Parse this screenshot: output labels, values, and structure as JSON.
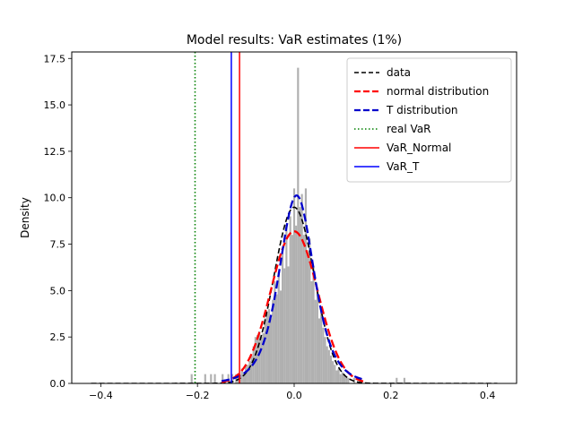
{
  "chart_data": {
    "type": "bar",
    "title": "Model results: VaR estimates (1%)",
    "xlabel": "",
    "ylabel": "Density",
    "xlim": [
      -0.46,
      0.46
    ],
    "ylim": [
      0,
      17.85
    ],
    "xticks": [
      -0.4,
      -0.2,
      0.0,
      0.2,
      0.4
    ],
    "xtick_labels": [
      "−0.4",
      "−0.2",
      "0.0",
      "0.2",
      "0.4"
    ],
    "yticks": [
      0.0,
      2.5,
      5.0,
      7.5,
      10.0,
      12.5,
      15.0,
      17.5
    ],
    "ytick_labels": [
      "0.0",
      "2.5",
      "5.0",
      "7.5",
      "10.0",
      "12.5",
      "15.0",
      "17.5"
    ],
    "grid": false,
    "legend_position": "top-right",
    "colors": {
      "histogram": "#b0b0b0",
      "data": "#000000",
      "normal": "#ff0000",
      "t": "#0000cc",
      "real_var": "#008000",
      "var_normal": "#ff0000",
      "var_t": "#0000ff"
    },
    "legend": [
      {
        "label": "data",
        "key": "data",
        "style": "dashed"
      },
      {
        "label": "normal distribution",
        "key": "normal",
        "style": "dashed-thick"
      },
      {
        "label": "T distribution",
        "key": "t",
        "style": "dashed-thick"
      },
      {
        "label": "real VaR",
        "key": "real_var",
        "style": "dotted"
      },
      {
        "label": "VaR_Normal",
        "key": "var_normal",
        "style": "solid"
      },
      {
        "label": "VaR_T",
        "key": "var_t",
        "style": "solid"
      }
    ],
    "histogram": {
      "bin_width": 0.004,
      "bins": [
        [
          -0.214,
          0.5
        ],
        [
          -0.186,
          0.5
        ],
        [
          -0.174,
          0.5
        ],
        [
          -0.166,
          0.5
        ],
        [
          -0.15,
          0.5
        ],
        [
          -0.138,
          0.5
        ],
        [
          -0.13,
          0.5
        ],
        [
          -0.122,
          0.5
        ],
        [
          -0.118,
          0.5
        ],
        [
          -0.114,
          0.5
        ],
        [
          -0.11,
          0.8
        ],
        [
          -0.106,
          0.5
        ],
        [
          -0.102,
          1.0
        ],
        [
          -0.098,
          1.0
        ],
        [
          -0.094,
          1.2
        ],
        [
          -0.09,
          1.5
        ],
        [
          -0.086,
          2.0
        ],
        [
          -0.082,
          2.5
        ],
        [
          -0.078,
          2.6
        ],
        [
          -0.074,
          2.8
        ],
        [
          -0.07,
          2.5
        ],
        [
          -0.066,
          2.7
        ],
        [
          -0.062,
          3.5
        ],
        [
          -0.058,
          3.8
        ],
        [
          -0.054,
          4.0
        ],
        [
          -0.05,
          3.5
        ],
        [
          -0.046,
          4.5
        ],
        [
          -0.042,
          5.5
        ],
        [
          -0.038,
          4.8
        ],
        [
          -0.034,
          6.0
        ],
        [
          -0.03,
          5.0
        ],
        [
          -0.026,
          7.0
        ],
        [
          -0.022,
          6.2
        ],
        [
          -0.018,
          8.5
        ],
        [
          -0.014,
          6.3
        ],
        [
          -0.01,
          9.0
        ],
        [
          -0.006,
          8.0
        ],
        [
          -0.002,
          10.5
        ],
        [
          0.002,
          8.5
        ],
        [
          0.006,
          17.0
        ],
        [
          0.01,
          9.5
        ],
        [
          0.014,
          10.2
        ],
        [
          0.018,
          8.0
        ],
        [
          0.022,
          10.5
        ],
        [
          0.026,
          7.0
        ],
        [
          0.03,
          7.8
        ],
        [
          0.034,
          5.5
        ],
        [
          0.038,
          6.3
        ],
        [
          0.042,
          4.5
        ],
        [
          0.046,
          5.0
        ],
        [
          0.05,
          3.5
        ],
        [
          0.054,
          3.8
        ],
        [
          0.058,
          3.0
        ],
        [
          0.062,
          2.5
        ],
        [
          0.066,
          2.0
        ],
        [
          0.07,
          1.8
        ],
        [
          0.074,
          1.5
        ],
        [
          0.078,
          1.2
        ],
        [
          0.082,
          1.0
        ],
        [
          0.086,
          0.7
        ],
        [
          0.09,
          0.8
        ],
        [
          0.094,
          0.5
        ],
        [
          0.098,
          0.6
        ],
        [
          0.102,
          0.5
        ],
        [
          0.106,
          0.4
        ],
        [
          0.11,
          0.3
        ],
        [
          0.122,
          0.3
        ],
        [
          0.134,
          0.3
        ],
        [
          0.21,
          0.3
        ],
        [
          0.226,
          0.3
        ]
      ]
    },
    "curves": {
      "data_kde": {
        "mu": 0.0,
        "sigma": 0.042,
        "tail": 0.0018,
        "tail_scale": 0.12,
        "x_range": [
          -0.42,
          0.42
        ]
      },
      "normal_pdf": {
        "mu": 0.0,
        "sigma": 0.0487,
        "x_range": [
          -0.15,
          0.15
        ]
      },
      "t_pdf": {
        "mu": 0.005,
        "scale": 0.0373,
        "df": 4.5,
        "x_range": [
          -0.15,
          0.14
        ]
      }
    },
    "vlines": {
      "real_var": -0.205,
      "var_normal": -0.113,
      "var_t": -0.13
    }
  }
}
